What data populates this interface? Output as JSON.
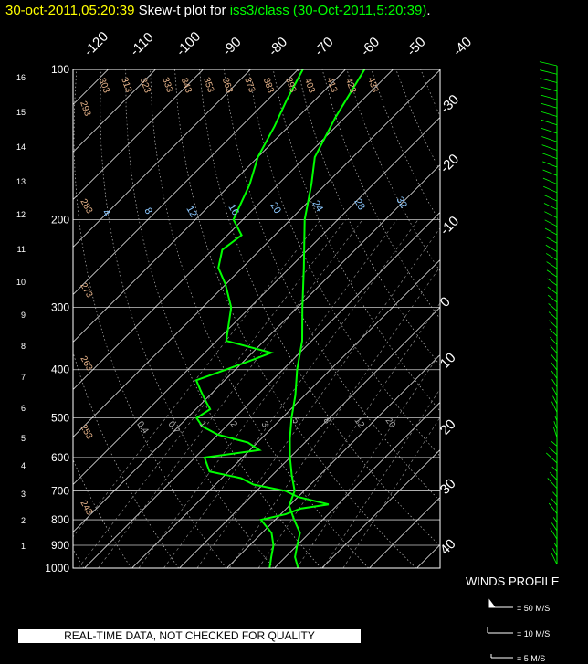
{
  "header": {
    "date": "30-oct-2011,05:20:39",
    "middle": " Skew-t plot for ",
    "source": "iss3/class (30-Oct-2011,5:20:39)",
    "end": "."
  },
  "colors": {
    "date": "#ffff00",
    "source": "#00ff00",
    "profile": "#00ff00",
    "isotherm": "#ffffff",
    "dry_adiabat_label": "#e8b48a",
    "mixing_ratio_label": "#8cc8ff"
  },
  "chart_data": {
    "type": "line",
    "pressure_levels": [
      100,
      200,
      300,
      400,
      500,
      600,
      700,
      800,
      900,
      1000
    ],
    "height_km_ticks": [
      16,
      15,
      14,
      13,
      12,
      11,
      10,
      9,
      8,
      7,
      6,
      5,
      4,
      3,
      2,
      1
    ],
    "temperature_ticks_top": [
      -120,
      -110,
      -100,
      -90,
      -80,
      -70,
      -60,
      -50,
      -40
    ],
    "temperature_ticks_right": [
      -30,
      -20,
      -10,
      0,
      10,
      20,
      30,
      40
    ],
    "dry_adiabat_labels": [
      "293",
      "303",
      "313",
      "323",
      "333",
      "343",
      "353",
      "363",
      "373",
      "383",
      "393",
      "403",
      "413",
      "423",
      "433",
      "283",
      "273",
      "263",
      "253",
      "243"
    ],
    "mixing_ratio_labels": [
      "4",
      "8",
      "12",
      "16",
      "20",
      "24",
      "28",
      "32"
    ],
    "low_ratio_labels": [
      "0.4",
      "0.7",
      "1",
      "2",
      "3",
      "5",
      "8",
      "12",
      "20"
    ],
    "series": [
      {
        "name": "temperature",
        "points": [
          [
            1000,
            25
          ],
          [
            950,
            22
          ],
          [
            900,
            20
          ],
          [
            850,
            18
          ],
          [
            800,
            14
          ],
          [
            750,
            10
          ],
          [
            700,
            8
          ],
          [
            650,
            4
          ],
          [
            600,
            0
          ],
          [
            550,
            -4
          ],
          [
            500,
            -8
          ],
          [
            450,
            -12
          ],
          [
            400,
            -17
          ],
          [
            350,
            -22
          ],
          [
            300,
            -29
          ],
          [
            250,
            -37
          ],
          [
            200,
            -47
          ],
          [
            170,
            -53
          ],
          [
            150,
            -58
          ],
          [
            125,
            -62
          ],
          [
            100,
            -66
          ]
        ]
      },
      {
        "name": "dewpoint",
        "points": [
          [
            1000,
            19
          ],
          [
            950,
            17
          ],
          [
            900,
            15
          ],
          [
            850,
            12
          ],
          [
            800,
            7
          ],
          [
            780,
            11
          ],
          [
            760,
            13
          ],
          [
            745,
            18
          ],
          [
            720,
            10
          ],
          [
            700,
            6
          ],
          [
            680,
            -2
          ],
          [
            660,
            -6
          ],
          [
            640,
            -14
          ],
          [
            620,
            -16
          ],
          [
            600,
            -18
          ],
          [
            580,
            -8
          ],
          [
            560,
            -12
          ],
          [
            540,
            -20
          ],
          [
            520,
            -25
          ],
          [
            500,
            -28
          ],
          [
            480,
            -27
          ],
          [
            460,
            -30
          ],
          [
            440,
            -33
          ],
          [
            420,
            -36
          ],
          [
            400,
            -32
          ],
          [
            380,
            -28
          ],
          [
            370,
            -26
          ],
          [
            350,
            -38
          ],
          [
            300,
            -44
          ],
          [
            270,
            -50
          ],
          [
            250,
            -55
          ],
          [
            230,
            -58
          ],
          [
            215,
            -57
          ],
          [
            200,
            -62
          ],
          [
            170,
            -66
          ],
          [
            150,
            -70
          ],
          [
            130,
            -73
          ],
          [
            115,
            -76
          ],
          [
            100,
            -79
          ]
        ]
      }
    ],
    "wind_levels": 60
  },
  "footer": {
    "winds_profile_label": "WINDS PROFILE",
    "legend": [
      "= 50 M/S",
      "= 10 M/S",
      "= 5 M/S"
    ],
    "quality_notice": "REAL-TIME DATA, NOT CHECKED FOR QUALITY"
  }
}
